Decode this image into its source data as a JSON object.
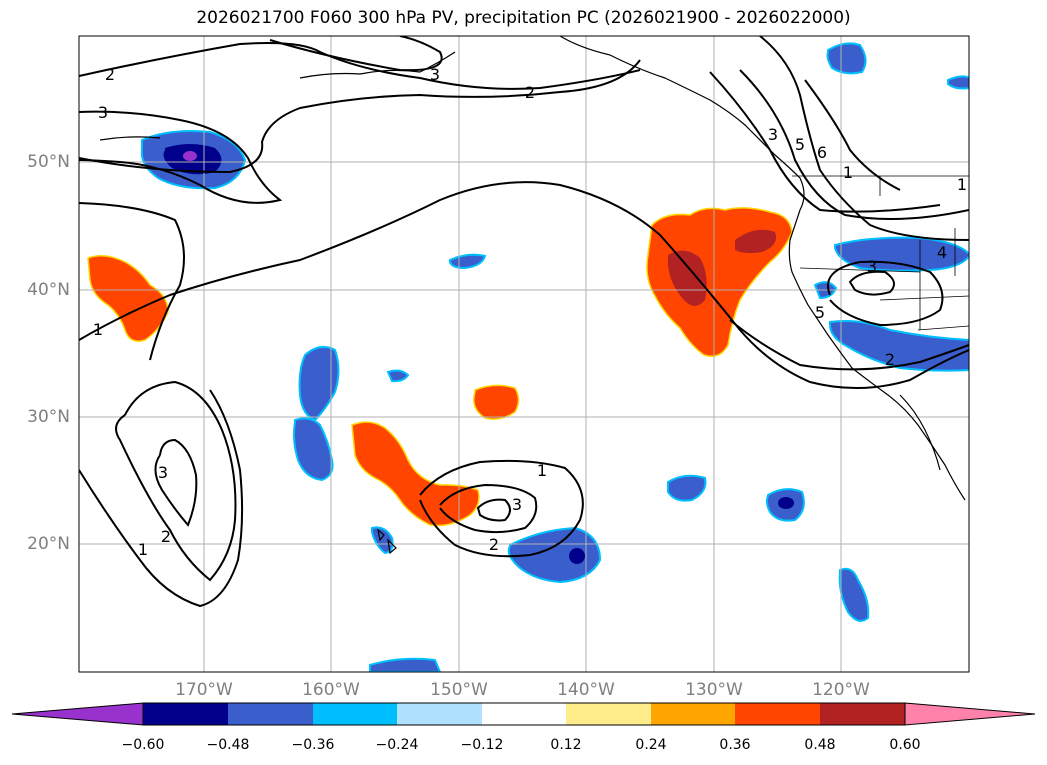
{
  "title": "2026021700 F060 300 hPa PV, precipitation PC (2026021900 - 2026022000)",
  "lat_labels": [
    "50°N",
    "40°N",
    "30°N",
    "20°N"
  ],
  "lon_labels": [
    "170°W",
    "160°W",
    "150°W",
    "140°W",
    "130°W",
    "120°W"
  ],
  "contour_labels": [
    "2",
    "3",
    "2",
    "3",
    "1",
    "3",
    "5",
    "6",
    "1",
    "3",
    "4",
    "2",
    "5",
    "1",
    "3",
    "1",
    "2",
    "1",
    "3",
    "2"
  ],
  "colorbar": {
    "ticks": [
      "−0.60",
      "−0.48",
      "−0.36",
      "−0.24",
      "−0.12",
      "0.12",
      "0.24",
      "0.36",
      "0.48",
      "0.60"
    ],
    "colors": [
      "#9932cc",
      "#00008b",
      "#3a5fcd",
      "#00bfff",
      "#b0e2ff",
      "#ffffff",
      "#ffec8b",
      "#ffa500",
      "#ff4500",
      "#b22222",
      "#ff82ab"
    ]
  },
  "legend_colors": {
    "orange_red": "#ff4500",
    "dark_red": "#b22222",
    "royal_blue": "#3a5fcd",
    "navy": "#00008b",
    "cyan": "#00bfff",
    "purple": "#9932cc"
  }
}
